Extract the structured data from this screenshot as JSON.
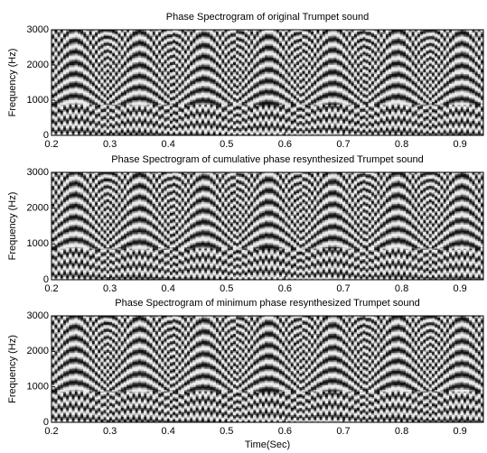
{
  "chart_data": [
    {
      "type": "image",
      "title": "Phase Spectrogram of original Trumpet sound",
      "ylabel": "Frequency (Hz)",
      "colormap": "gray",
      "xlim": [
        0.2,
        0.94
      ],
      "xticks": [
        0.2,
        0.3,
        0.4,
        0.5,
        0.6,
        0.7,
        0.8,
        0.9
      ],
      "ylim": [
        0,
        3000
      ],
      "yticks": [
        0,
        1000,
        2000,
        3000
      ]
    },
    {
      "type": "image",
      "title": "Phase Spectrogram of cumulative phase resynthesized Trumpet sound",
      "ylabel": "Frequency (Hz)",
      "colormap": "gray",
      "xlim": [
        0.2,
        0.94
      ],
      "xticks": [
        0.2,
        0.3,
        0.4,
        0.5,
        0.6,
        0.7,
        0.8,
        0.9
      ],
      "ylim": [
        0,
        3000
      ],
      "yticks": [
        0,
        1000,
        2000,
        3000
      ]
    },
    {
      "type": "image",
      "title": "Phase Spectrogram of minimum phase resynthesized Trumpet sound",
      "ylabel": "Frequency (Hz)",
      "xlabel": "Time(Sec)",
      "colormap": "gray",
      "xlim": [
        0.2,
        0.94
      ],
      "xticks": [
        0.2,
        0.3,
        0.4,
        0.5,
        0.6,
        0.7,
        0.8,
        0.9
      ],
      "ylim": [
        0,
        3000
      ],
      "yticks": [
        0,
        1000,
        2000,
        3000
      ]
    }
  ]
}
